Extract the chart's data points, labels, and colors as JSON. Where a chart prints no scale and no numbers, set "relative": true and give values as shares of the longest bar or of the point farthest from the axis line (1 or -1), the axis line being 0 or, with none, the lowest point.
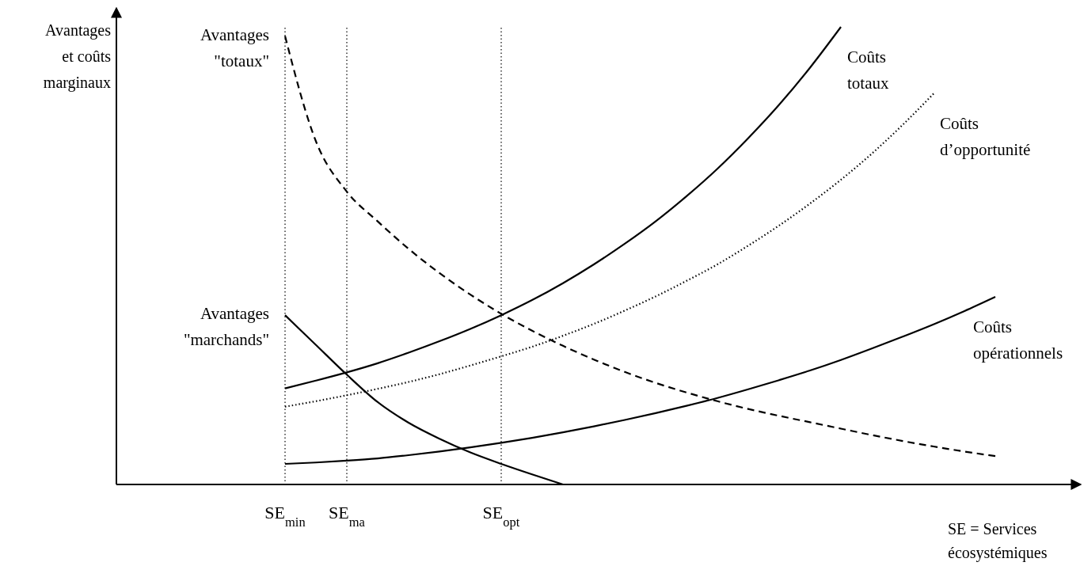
{
  "chart_data": {
    "type": "line",
    "relative": true,
    "ylabel": "Avantages et coûts marginaux",
    "categories": [
      null,
      null,
      null,
      null,
      null,
      "SE$_{min}$",
      null,
      "SE$_{ma}$",
      null,
      null,
      null,
      null,
      "SE$_{opt}$",
      null,
      null,
      null,
      null,
      null,
      null,
      null,
      null,
      null,
      null,
      null,
      null,
      null,
      null,
      null,
      null,
      null,
      null
    ],
    "tick_labels": "x",
    "marker": "none",
    "ref_lines": [
      {
        "axis": "x",
        "value": "SE$_{min}$",
        "line_style": "dotted",
        "color": "#000000"
      },
      {
        "axis": "x",
        "value": "SE$_{ma}$",
        "line_style": "dotted",
        "color": "#000000"
      },
      {
        "axis": "x",
        "value": "SE$_{opt}$",
        "line_style": "dotted",
        "color": "#000000"
      }
    ],
    "series": [
      {
        "name": "Avantages \"totaux\"",
        "color": "#000000",
        "line_style": "dashed",
        "values": [
          null,
          null,
          null,
          null,
          null,
          0.98,
          0.75,
          0.64,
          0.575,
          0.515,
          0.462,
          0.415,
          0.373,
          0.336,
          0.303,
          0.273,
          0.246,
          0.222,
          0.201,
          0.182,
          0.165,
          0.15,
          0.136,
          0.122,
          0.108,
          0.095,
          0.083,
          0.072,
          0.062,
          null,
          null
        ]
      },
      {
        "name": "Avantages \"marchands\"",
        "color": "#000000",
        "line_style": "solid",
        "values": [
          null,
          null,
          null,
          null,
          null,
          0.37,
          0.305,
          0.24,
          0.18,
          0.135,
          0.1,
          0.07,
          0.045,
          0.022,
          0,
          null,
          null,
          null,
          null,
          null,
          null,
          null,
          null,
          null,
          null,
          null,
          null,
          null,
          null,
          null,
          null
        ]
      },
      {
        "name": "Coûts totaux",
        "color": "#000000",
        "line_style": "solid",
        "values": [
          null,
          null,
          null,
          null,
          null,
          0.21,
          0.227,
          0.245,
          0.265,
          0.288,
          0.313,
          0.34,
          0.37,
          0.403,
          0.44,
          0.481,
          0.526,
          0.575,
          0.63,
          0.69,
          0.757,
          0.83,
          0.911,
          1,
          null,
          null,
          null,
          null,
          null,
          null,
          null
        ]
      },
      {
        "name": "Coûts d’opportunité",
        "color": "#000000",
        "line_style": "dotted",
        "values": [
          null,
          null,
          null,
          null,
          null,
          0.17,
          0.182,
          0.195,
          0.209,
          0.224,
          0.241,
          0.26,
          0.28,
          0.301,
          0.325,
          0.351,
          0.38,
          0.411,
          0.445,
          0.481,
          0.522,
          0.566,
          0.614,
          0.666,
          0.723,
          0.786,
          0.854,
          null,
          null,
          null,
          null
        ]
      },
      {
        "name": "Coûts opérationnels",
        "color": "#000000",
        "line_style": "solid",
        "values": [
          null,
          null,
          null,
          null,
          null,
          0.045,
          0.048,
          0.052,
          0.057,
          0.064,
          0.072,
          0.081,
          0.091,
          0.102,
          0.114,
          0.127,
          0.141,
          0.156,
          0.172,
          0.189,
          0.208,
          0.228,
          0.249,
          0.272,
          0.297,
          0.323,
          0.35,
          0.379,
          0.41,
          null,
          null
        ]
      }
    ],
    "annotations": [
      "SE = Services écosystémiques"
    ]
  }
}
